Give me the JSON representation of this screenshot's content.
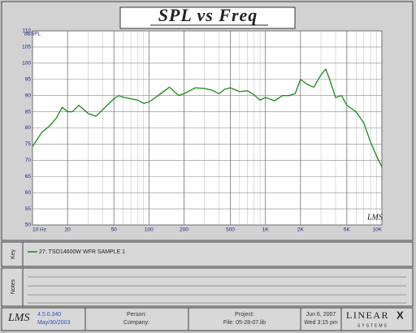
{
  "chart_data": {
    "type": "line",
    "title": "SPL vs Freq",
    "y_label": "dBSPL",
    "watermark": "LMS",
    "xscale": "log",
    "grid": true,
    "x": [
      10,
      12,
      14,
      16,
      18,
      20,
      22,
      25,
      30,
      35,
      40,
      45,
      50,
      55,
      60,
      70,
      80,
      90,
      100,
      120,
      150,
      180,
      200,
      250,
      300,
      350,
      400,
      450,
      500,
      600,
      700,
      800,
      900,
      1000,
      1200,
      1400,
      1600,
      1800,
      2000,
      2300,
      2600,
      3000,
      3300,
      3600,
      4000,
      4500,
      5000,
      6000,
      7000,
      8000,
      9000,
      10000
    ],
    "series": [
      {
        "name": "27: TSO14600W WFR SAMPLE 1",
        "color": "#1a8a1a",
        "values": [
          74.3,
          78.6,
          80.6,
          83,
          86.4,
          85,
          85,
          87,
          84.5,
          83.6,
          85.6,
          87.4,
          89,
          90,
          89.5,
          89,
          88.6,
          87.6,
          88,
          90,
          92.6,
          90,
          90.6,
          92.4,
          92.2,
          91.6,
          90.6,
          92,
          92.4,
          91.2,
          91.5,
          90.2,
          88.6,
          89.4,
          88.4,
          90,
          90,
          90.6,
          95,
          93.4,
          92.6,
          96.4,
          98.2,
          94.5,
          89.4,
          90,
          87,
          85,
          81.5,
          75.6,
          71.3,
          68
        ]
      }
    ],
    "xlim": [
      10,
      10000
    ],
    "ylim": [
      50,
      110
    ],
    "xticks": [
      {
        "value": 10,
        "label": "10 Hz"
      },
      20,
      50,
      100,
      200,
      500,
      {
        "value": 1000,
        "label": "1K"
      },
      {
        "value": 2000,
        "label": "2K"
      },
      {
        "value": 5000,
        "label": "5K"
      },
      {
        "value": 10000,
        "label": "10K"
      }
    ],
    "yticks": [
      50,
      55,
      60,
      65,
      70,
      75,
      80,
      85,
      90,
      95,
      100,
      105,
      110
    ]
  },
  "key_label": "Key",
  "notes_label": "Notes",
  "footer": {
    "logo": "LMS",
    "version": "4.5.0.340",
    "build_date": "May/30/2003",
    "person": "Person:",
    "company": "Company:",
    "project": "Project:",
    "file": "File: 05-28-07.lib",
    "date": "Jun 6, 2007",
    "time": "Wed 3:15 pm",
    "brand": "LINEAR",
    "brand_x": "X",
    "brand_sub": "SYSTEMS"
  }
}
